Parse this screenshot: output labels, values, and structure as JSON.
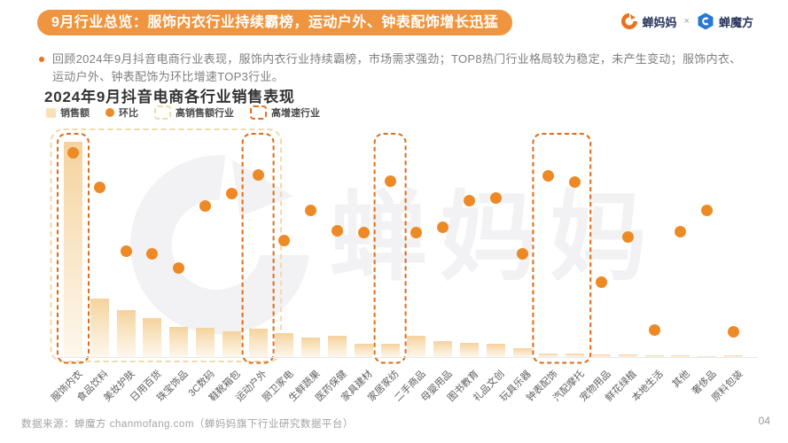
{
  "header": {
    "title": "9月行业总览：服饰内衣行业持续霸榜，运动户外、钟表配饰增长迅猛",
    "brand_left": "蝉妈妈",
    "brand_cross": "×",
    "brand_right": "蝉魔方",
    "accent_color": "#F0953F"
  },
  "summary": {
    "line1": "回顾2024年9月抖音电商行业表现，服饰内衣行业持续霸榜，市场需求强劲；TOP8热门行业格局较为稳定，未产生变动；服饰内衣、",
    "line2": "运动户外、钟表配饰为环比增速TOP3行业。"
  },
  "chart_data": {
    "type": "bar+scatter",
    "title": "2024年9月抖音电商各行业销售表现",
    "legend": [
      "销售额",
      "环比",
      "高销售额行业",
      "高增速行业"
    ],
    "note": "坐标轴无数值刻度，数值为按像素估算的相对指数(0-100)",
    "categories": [
      "服饰内衣",
      "食品饮料",
      "美妆护肤",
      "日用百货",
      "珠宝饰品",
      "3C数码",
      "鞋靴箱包",
      "运动户外",
      "厨卫家电",
      "生鲜蔬果",
      "医药保健",
      "家具建材",
      "家居家纺",
      "二手商品",
      "母婴用品",
      "图书教育",
      "礼品文创",
      "玩具乐器",
      "钟表配饰",
      "汽配摩托",
      "宠物用品",
      "鲜花绿植",
      "本地生活",
      "其他",
      "奢侈品",
      "原料包装"
    ],
    "series": [
      {
        "name": "销售额",
        "type": "bar",
        "values": [
          100,
          27,
          22,
          18,
          14,
          13.5,
          12,
          13,
          11,
          9,
          10,
          6,
          6,
          10,
          7.5,
          6.5,
          6,
          4,
          1.6,
          1.6,
          1.4,
          1.4,
          1,
          0.8,
          0.6,
          0.8
        ]
      },
      {
        "name": "环比",
        "type": "scatter",
        "values": [
          89.5,
          74.4,
          46.5,
          45,
          39.1,
          65.9,
          71.7,
          79.8,
          50.8,
          64.3,
          55.4,
          54.3,
          77.1,
          54.3,
          56.6,
          68.6,
          69.4,
          45.3,
          79.1,
          76.7,
          32.9,
          52.7,
          12,
          54.7,
          64.3,
          11.2
        ]
      }
    ],
    "high_sales_band": {
      "label": "高销售额行业",
      "from": 1,
      "to": 8
    },
    "high_growth_boxes": [
      {
        "label": "高增速行业",
        "from": 1,
        "to": 1
      },
      {
        "label": "高增速行业",
        "from": 8,
        "to": 8
      },
      {
        "label": "高增速行业",
        "from": 13,
        "to": 13
      },
      {
        "label": "高增速行业",
        "from": 19,
        "to": 20
      }
    ],
    "colors": {
      "bar": "#F5D29E",
      "dot": "#EE8A25",
      "high_growth_border": "#DE6B17",
      "high_sales_border": "#F2D9A8"
    },
    "watermark": "蝉妈妈"
  },
  "footer": {
    "source": "数据来源：蝉魔方 chanmofang.com（蝉妈妈旗下行业研究数据平台）",
    "page_number": "04"
  }
}
